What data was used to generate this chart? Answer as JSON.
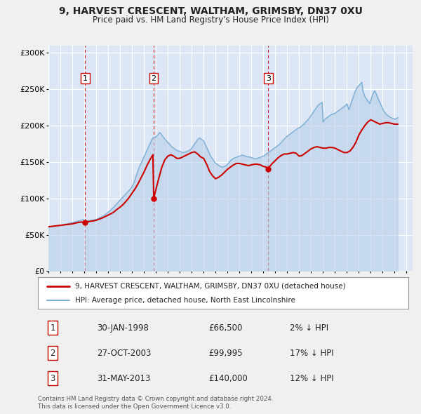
{
  "title": "9, HARVEST CRESCENT, WALTHAM, GRIMSBY, DN37 0XU",
  "subtitle": "Price paid vs. HM Land Registry's House Price Index (HPI)",
  "xlim": [
    1995.0,
    2025.5
  ],
  "ylim": [
    0,
    310000
  ],
  "yticks": [
    0,
    50000,
    100000,
    150000,
    200000,
    250000,
    300000
  ],
  "ytick_labels": [
    "£0",
    "£50K",
    "£100K",
    "£150K",
    "£200K",
    "£250K",
    "£300K"
  ],
  "xticks": [
    1995,
    1996,
    1997,
    1998,
    1999,
    2000,
    2001,
    2002,
    2003,
    2004,
    2005,
    2006,
    2007,
    2008,
    2009,
    2010,
    2011,
    2012,
    2013,
    2014,
    2015,
    2016,
    2017,
    2018,
    2019,
    2020,
    2021,
    2022,
    2023,
    2024,
    2025
  ],
  "fig_bg_color": "#f0f0f0",
  "plot_bg_color": "#dce6f5",
  "grid_color": "#ffffff",
  "red_line_color": "#cc0000",
  "blue_line_color": "#7bafd4",
  "blue_fill_color": "#b8d0e8",
  "sale_marker_color": "#cc0000",
  "vline_color": "#cc0000",
  "sales": [
    {
      "num": 1,
      "date_decimal": 1998.08,
      "price": 66500,
      "label": "30-JAN-1998",
      "price_label": "£66,500",
      "hpi_rel": "2% ↓ HPI"
    },
    {
      "num": 2,
      "date_decimal": 2003.82,
      "price": 99995,
      "label": "27-OCT-2003",
      "price_label": "£99,995",
      "hpi_rel": "17% ↓ HPI"
    },
    {
      "num": 3,
      "date_decimal": 2013.41,
      "price": 140000,
      "label": "31-MAY-2013",
      "price_label": "£140,000",
      "hpi_rel": "12% ↓ HPI"
    }
  ],
  "legend_entries": [
    {
      "label": "9, HARVEST CRESCENT, WALTHAM, GRIMSBY, DN37 0XU (detached house)",
      "color": "#cc0000",
      "lw": 2
    },
    {
      "label": "HPI: Average price, detached house, North East Lincolnshire",
      "color": "#7bafd4",
      "lw": 1.5
    }
  ],
  "footer_lines": [
    "Contains HM Land Registry data © Crown copyright and database right 2024.",
    "This data is licensed under the Open Government Licence v3.0."
  ],
  "hpi_data": {
    "years": [
      1995.0,
      1995.083,
      1995.167,
      1995.25,
      1995.333,
      1995.417,
      1995.5,
      1995.583,
      1995.667,
      1995.75,
      1995.833,
      1995.917,
      1996.0,
      1996.083,
      1996.167,
      1996.25,
      1996.333,
      1996.417,
      1996.5,
      1996.583,
      1996.667,
      1996.75,
      1996.833,
      1996.917,
      1997.0,
      1997.083,
      1997.167,
      1997.25,
      1997.333,
      1997.417,
      1997.5,
      1997.583,
      1997.667,
      1997.75,
      1997.833,
      1997.917,
      1998.0,
      1998.083,
      1998.167,
      1998.25,
      1998.333,
      1998.417,
      1998.5,
      1998.583,
      1998.667,
      1998.75,
      1998.833,
      1998.917,
      1999.0,
      1999.083,
      1999.167,
      1999.25,
      1999.333,
      1999.417,
      1999.5,
      1999.583,
      1999.667,
      1999.75,
      1999.833,
      1999.917,
      2000.0,
      2000.083,
      2000.167,
      2000.25,
      2000.333,
      2000.417,
      2000.5,
      2000.583,
      2000.667,
      2000.75,
      2000.833,
      2000.917,
      2001.0,
      2001.083,
      2001.167,
      2001.25,
      2001.333,
      2001.417,
      2001.5,
      2001.583,
      2001.667,
      2001.75,
      2001.833,
      2001.917,
      2002.0,
      2002.083,
      2002.167,
      2002.25,
      2002.333,
      2002.417,
      2002.5,
      2002.583,
      2002.667,
      2002.75,
      2002.833,
      2002.917,
      2003.0,
      2003.083,
      2003.167,
      2003.25,
      2003.333,
      2003.417,
      2003.5,
      2003.583,
      2003.667,
      2003.75,
      2003.833,
      2003.917,
      2004.0,
      2004.083,
      2004.167,
      2004.25,
      2004.333,
      2004.417,
      2004.5,
      2004.583,
      2004.667,
      2004.75,
      2004.833,
      2004.917,
      2005.0,
      2005.083,
      2005.167,
      2005.25,
      2005.333,
      2005.417,
      2005.5,
      2005.583,
      2005.667,
      2005.75,
      2005.833,
      2005.917,
      2006.0,
      2006.083,
      2006.167,
      2006.25,
      2006.333,
      2006.417,
      2006.5,
      2006.583,
      2006.667,
      2006.75,
      2006.833,
      2006.917,
      2007.0,
      2007.083,
      2007.167,
      2007.25,
      2007.333,
      2007.417,
      2007.5,
      2007.583,
      2007.667,
      2007.75,
      2007.833,
      2007.917,
      2008.0,
      2008.083,
      2008.167,
      2008.25,
      2008.333,
      2008.417,
      2008.5,
      2008.583,
      2008.667,
      2008.75,
      2008.833,
      2008.917,
      2009.0,
      2009.083,
      2009.167,
      2009.25,
      2009.333,
      2009.417,
      2009.5,
      2009.583,
      2009.667,
      2009.75,
      2009.833,
      2009.917,
      2010.0,
      2010.083,
      2010.167,
      2010.25,
      2010.333,
      2010.417,
      2010.5,
      2010.583,
      2010.667,
      2010.75,
      2010.833,
      2010.917,
      2011.0,
      2011.083,
      2011.167,
      2011.25,
      2011.333,
      2011.417,
      2011.5,
      2011.583,
      2011.667,
      2011.75,
      2011.833,
      2011.917,
      2012.0,
      2012.083,
      2012.167,
      2012.25,
      2012.333,
      2012.417,
      2012.5,
      2012.583,
      2012.667,
      2012.75,
      2012.833,
      2012.917,
      2013.0,
      2013.083,
      2013.167,
      2013.25,
      2013.333,
      2013.417,
      2013.5,
      2013.583,
      2013.667,
      2013.75,
      2013.833,
      2013.917,
      2014.0,
      2014.083,
      2014.167,
      2014.25,
      2014.333,
      2014.417,
      2014.5,
      2014.583,
      2014.667,
      2014.75,
      2014.833,
      2014.917,
      2015.0,
      2015.083,
      2015.167,
      2015.25,
      2015.333,
      2015.417,
      2015.5,
      2015.583,
      2015.667,
      2015.75,
      2015.833,
      2015.917,
      2016.0,
      2016.083,
      2016.167,
      2016.25,
      2016.333,
      2016.417,
      2016.5,
      2016.583,
      2016.667,
      2016.75,
      2016.833,
      2016.917,
      2017.0,
      2017.083,
      2017.167,
      2017.25,
      2017.333,
      2017.417,
      2017.5,
      2017.583,
      2017.667,
      2017.75,
      2017.833,
      2017.917,
      2018.0,
      2018.083,
      2018.167,
      2018.25,
      2018.333,
      2018.417,
      2018.5,
      2018.583,
      2018.667,
      2018.75,
      2018.833,
      2018.917,
      2019.0,
      2019.083,
      2019.167,
      2019.25,
      2019.333,
      2019.417,
      2019.5,
      2019.583,
      2019.667,
      2019.75,
      2019.833,
      2019.917,
      2020.0,
      2020.083,
      2020.167,
      2020.25,
      2020.333,
      2020.417,
      2020.5,
      2020.583,
      2020.667,
      2020.75,
      2020.833,
      2020.917,
      2021.0,
      2021.083,
      2021.167,
      2021.25,
      2021.333,
      2021.417,
      2021.5,
      2021.583,
      2021.667,
      2021.75,
      2021.833,
      2021.917,
      2022.0,
      2022.083,
      2022.167,
      2022.25,
      2022.333,
      2022.417,
      2022.5,
      2022.583,
      2022.667,
      2022.75,
      2022.833,
      2022.917,
      2023.0,
      2023.083,
      2023.167,
      2023.25,
      2023.333,
      2023.417,
      2023.5,
      2023.583,
      2023.667,
      2023.75,
      2023.833,
      2023.917,
      2024.0,
      2024.083,
      2024.167,
      2024.25
    ],
    "values": [
      60500,
      60700,
      60900,
      61100,
      61300,
      61500,
      61700,
      61900,
      62100,
      62300,
      62500,
      62700,
      63000,
      63300,
      63600,
      63900,
      64200,
      64500,
      64800,
      65100,
      65400,
      65700,
      66000,
      66300,
      66600,
      67000,
      67400,
      67800,
      68200,
      68600,
      69000,
      69400,
      69800,
      70200,
      70600,
      70900,
      68500,
      68700,
      68900,
      69100,
      69300,
      69500,
      69700,
      69900,
      70100,
      70300,
      70500,
      70800,
      71200,
      71600,
      72200,
      72800,
      73500,
      74300,
      75100,
      76000,
      76900,
      77800,
      78800,
      79800,
      80900,
      82000,
      83200,
      84500,
      85800,
      87200,
      88500,
      90000,
      91500,
      93000,
      94500,
      96000,
      97500,
      99000,
      100500,
      102000,
      103500,
      105000,
      106500,
      108000,
      109500,
      111000,
      112500,
      114000,
      116000,
      119000,
      122000,
      126000,
      130000,
      134000,
      138000,
      142000,
      145000,
      148000,
      151000,
      154000,
      157000,
      160000,
      163000,
      166000,
      169000,
      172000,
      175000,
      178000,
      181000,
      183000,
      183500,
      184000,
      184500,
      186000,
      187500,
      189000,
      190500,
      189000,
      187000,
      185000,
      183000,
      181500,
      180000,
      178500,
      177000,
      175500,
      174000,
      172500,
      171000,
      170000,
      169000,
      168000,
      167000,
      166000,
      165500,
      165000,
      164500,
      164000,
      163500,
      163000,
      163000,
      163500,
      164000,
      164500,
      165000,
      165500,
      166500,
      167500,
      169000,
      171000,
      173000,
      175000,
      177000,
      179000,
      181000,
      182000,
      183000,
      182000,
      181000,
      180000,
      179000,
      176000,
      173000,
      170000,
      167000,
      164000,
      161000,
      158000,
      156000,
      154000,
      152000,
      150000,
      148500,
      147500,
      146500,
      145500,
      144500,
      144000,
      143500,
      143000,
      143500,
      144000,
      144500,
      145500,
      147000,
      148500,
      150000,
      151500,
      153000,
      154000,
      155000,
      155500,
      156000,
      156500,
      157000,
      157500,
      158000,
      158500,
      159000,
      159500,
      159000,
      158500,
      158000,
      157500,
      157000,
      157000,
      157000,
      156500,
      156000,
      155500,
      155000,
      154500,
      154500,
      154500,
      155000,
      155500,
      156000,
      156500,
      157000,
      157500,
      158000,
      159000,
      160000,
      161000,
      162000,
      163000,
      164000,
      165000,
      166000,
      167000,
      168000,
      169000,
      170000,
      171000,
      172000,
      173000,
      174000,
      175500,
      177000,
      178500,
      180000,
      181500,
      183000,
      184500,
      185500,
      186500,
      187500,
      188500,
      189500,
      190500,
      191500,
      192500,
      193500,
      194500,
      195500,
      196500,
      197000,
      198000,
      199000,
      200000,
      201000,
      202500,
      204000,
      205500,
      207000,
      208500,
      210000,
      212000,
      214000,
      216000,
      218000,
      220000,
      222000,
      224000,
      226000,
      228000,
      229000,
      230000,
      231000,
      232000,
      205000,
      207000,
      209000,
      210000,
      211000,
      212000,
      213000,
      214000,
      215000,
      215500,
      216000,
      216500,
      217000,
      218000,
      219000,
      220000,
      221000,
      222000,
      223000,
      224000,
      225000,
      226000,
      227000,
      228000,
      230000,
      226000,
      222000,
      226000,
      230000,
      234000,
      238000,
      242000,
      246000,
      249000,
      252000,
      253500,
      255000,
      256500,
      258000,
      259500,
      248000,
      244000,
      240000,
      238000,
      236000,
      234000,
      232000,
      230000,
      235000,
      239000,
      243000,
      246000,
      248000,
      245000,
      242000,
      238000,
      235000,
      232000,
      229000,
      226000,
      223000,
      220000,
      218000,
      216000,
      215000,
      214000,
      213000,
      212000,
      211000,
      210500,
      210000,
      209500,
      209000,
      209500,
      210000,
      211000
    ]
  },
  "price_data": {
    "years": [
      1995.0,
      1995.25,
      1995.5,
      1995.75,
      1996.0,
      1996.25,
      1996.5,
      1996.75,
      1997.0,
      1997.25,
      1997.5,
      1997.75,
      1998.08,
      1998.25,
      1998.5,
      1998.75,
      1999.0,
      1999.25,
      1999.5,
      1999.75,
      2000.0,
      2000.25,
      2000.5,
      2000.75,
      2001.0,
      2001.25,
      2001.5,
      2001.75,
      2002.0,
      2002.25,
      2002.5,
      2002.75,
      2003.0,
      2003.25,
      2003.5,
      2003.75,
      2003.82,
      2004.0,
      2004.25,
      2004.5,
      2004.75,
      2005.0,
      2005.25,
      2005.5,
      2005.75,
      2006.0,
      2006.25,
      2006.5,
      2006.75,
      2007.0,
      2007.25,
      2007.5,
      2007.75,
      2008.0,
      2008.25,
      2008.5,
      2008.75,
      2009.0,
      2009.25,
      2009.5,
      2009.75,
      2010.0,
      2010.25,
      2010.5,
      2010.75,
      2011.0,
      2011.25,
      2011.5,
      2011.75,
      2012.0,
      2012.25,
      2012.5,
      2012.75,
      2013.0,
      2013.25,
      2013.41,
      2013.5,
      2013.75,
      2014.0,
      2014.25,
      2014.5,
      2014.75,
      2015.0,
      2015.25,
      2015.5,
      2015.75,
      2016.0,
      2016.25,
      2016.5,
      2016.75,
      2017.0,
      2017.25,
      2017.5,
      2017.75,
      2018.0,
      2018.25,
      2018.5,
      2018.75,
      2019.0,
      2019.25,
      2019.5,
      2019.75,
      2020.0,
      2020.25,
      2020.5,
      2020.75,
      2021.0,
      2021.25,
      2021.5,
      2021.75,
      2022.0,
      2022.25,
      2022.5,
      2022.75,
      2023.0,
      2023.25,
      2023.5,
      2023.75,
      2024.0,
      2024.25
    ],
    "values": [
      61000,
      61500,
      62000,
      62500,
      63000,
      63500,
      64000,
      64500,
      65000,
      66000,
      67000,
      67500,
      66500,
      67500,
      68500,
      69000,
      70000,
      71500,
      73000,
      75000,
      77000,
      79000,
      81500,
      85000,
      88000,
      91500,
      96000,
      101000,
      107000,
      113000,
      120000,
      128000,
      136000,
      145000,
      153000,
      160000,
      99995,
      112000,
      128000,
      143000,
      153000,
      158000,
      160000,
      158000,
      155000,
      155000,
      157000,
      159000,
      161000,
      163000,
      164000,
      161000,
      157000,
      155000,
      147000,
      137000,
      131000,
      127000,
      129000,
      132000,
      136000,
      140000,
      143000,
      146000,
      148000,
      148000,
      147000,
      146000,
      145000,
      146000,
      147000,
      147000,
      146000,
      144000,
      143000,
      140000,
      143000,
      148000,
      152000,
      156000,
      159000,
      161000,
      161000,
      162000,
      163000,
      162000,
      158000,
      159000,
      162000,
      165000,
      168000,
      170000,
      171000,
      170000,
      169000,
      169000,
      170000,
      170000,
      169000,
      167000,
      165000,
      163000,
      163000,
      165000,
      170000,
      177000,
      187000,
      194000,
      200000,
      205000,
      208000,
      206000,
      204000,
      202000,
      203000,
      204000,
      204000,
      203000,
      202000,
      202000
    ]
  }
}
